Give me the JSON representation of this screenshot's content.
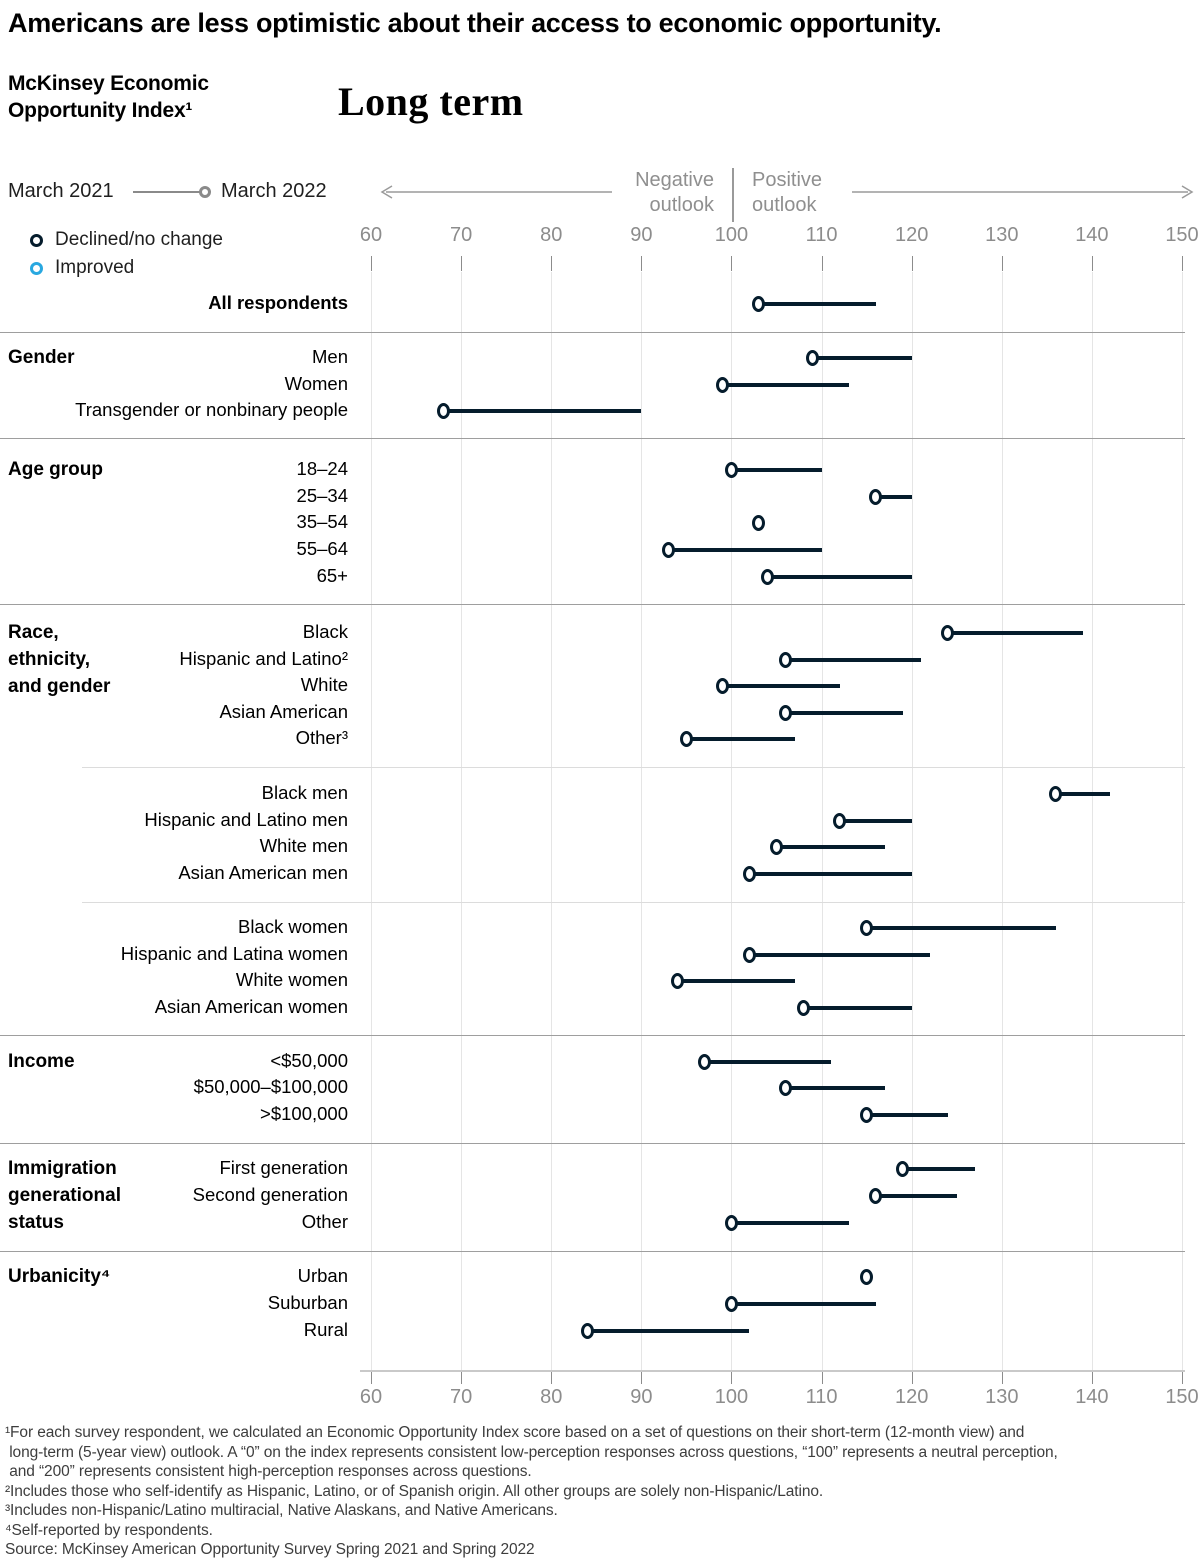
{
  "title": "Americans are less optimistic about their access to economic opportunity.",
  "index_label": "McKinsey Economic Opportunity Index¹",
  "view_label": "Long term",
  "legend": {
    "start_label": "March 2021",
    "end_label": "March 2022",
    "declined_label": "Declined/no change",
    "improved_label": "Improved",
    "declined_color": "#051c2c",
    "improved_color": "#29a8e0"
  },
  "axis": {
    "negative_label": "Negative outlook",
    "positive_label": "Positive outlook",
    "ticks": [
      60,
      70,
      80,
      90,
      100,
      110,
      120,
      130,
      140,
      150
    ]
  },
  "chart_data": {
    "type": "dumbbell",
    "x_range": [
      60,
      150
    ],
    "neutral_value": 100,
    "series_names": [
      "March 2021",
      "March 2022"
    ],
    "sections": [
      {
        "label": "",
        "rows": [
          {
            "label": "All respondents",
            "march_2021": 116,
            "march_2022": 103,
            "bold": true,
            "status": "declined"
          }
        ]
      },
      {
        "label": "Gender",
        "separator": "main",
        "rows": [
          {
            "label": "Men",
            "march_2021": 120,
            "march_2022": 109,
            "status": "declined"
          },
          {
            "label": "Women",
            "march_2021": 113,
            "march_2022": 99,
            "status": "declined"
          },
          {
            "label": "Transgender or nonbinary people",
            "march_2021": 90,
            "march_2022": 68,
            "status": "declined"
          }
        ]
      },
      {
        "label": "Age group",
        "separator": "main",
        "rows": [
          {
            "label": "18–24",
            "march_2021": 110,
            "march_2022": 100,
            "status": "declined"
          },
          {
            "label": "25–34",
            "march_2021": 120,
            "march_2022": 116,
            "status": "declined"
          },
          {
            "label": "35–54",
            "march_2021": 103,
            "march_2022": 103,
            "status": "declined"
          },
          {
            "label": "55–64",
            "march_2021": 110,
            "march_2022": 93,
            "status": "declined"
          },
          {
            "label": "65+",
            "march_2021": 120,
            "march_2022": 104,
            "status": "declined"
          }
        ]
      },
      {
        "label": "Race,\nethnicity,\nand gender",
        "separator": "main",
        "rows": [
          {
            "label": "Black",
            "march_2021": 139,
            "march_2022": 124,
            "status": "declined"
          },
          {
            "label": "Hispanic and Latino²",
            "march_2021": 121,
            "march_2022": 106,
            "status": "declined"
          },
          {
            "label": "White",
            "march_2021": 112,
            "march_2022": 99,
            "status": "declined"
          },
          {
            "label": "Asian American",
            "march_2021": 119,
            "march_2022": 106,
            "status": "declined"
          },
          {
            "label": "Other³",
            "march_2021": 107,
            "march_2022": 95,
            "status": "declined"
          }
        ]
      },
      {
        "label": "",
        "separator": "sub",
        "rows": [
          {
            "label": "Black men",
            "march_2021": 142,
            "march_2022": 136,
            "status": "declined"
          },
          {
            "label": "Hispanic and Latino men",
            "march_2021": 120,
            "march_2022": 112,
            "status": "declined"
          },
          {
            "label": "White men",
            "march_2021": 117,
            "march_2022": 105,
            "status": "declined"
          },
          {
            "label": "Asian American men",
            "march_2021": 120,
            "march_2022": 102,
            "status": "declined"
          }
        ]
      },
      {
        "label": "",
        "separator": "sub",
        "rows": [
          {
            "label": "Black women",
            "march_2021": 136,
            "march_2022": 115,
            "status": "declined"
          },
          {
            "label": "Hispanic and Latina women",
            "march_2021": 122,
            "march_2022": 102,
            "status": "declined"
          },
          {
            "label": "White women",
            "march_2021": 107,
            "march_2022": 94,
            "status": "declined"
          },
          {
            "label": "Asian American women",
            "march_2021": 120,
            "march_2022": 108,
            "status": "declined"
          }
        ]
      },
      {
        "label": "Income",
        "separator": "main",
        "rows": [
          {
            "label": "<$50,000",
            "march_2021": 111,
            "march_2022": 97,
            "status": "declined"
          },
          {
            "label": "$50,000–$100,000",
            "march_2021": 117,
            "march_2022": 106,
            "status": "declined"
          },
          {
            "label": ">$100,000",
            "march_2021": 124,
            "march_2022": 115,
            "status": "declined"
          }
        ]
      },
      {
        "label": "Immigration\ngenerational\nstatus",
        "separator": "main",
        "rows": [
          {
            "label": "First generation",
            "march_2021": 127,
            "march_2022": 119,
            "status": "declined"
          },
          {
            "label": "Second generation",
            "march_2021": 125,
            "march_2022": 116,
            "status": "declined"
          },
          {
            "label": "Other",
            "march_2021": 113,
            "march_2022": 100,
            "status": "declined"
          }
        ]
      },
      {
        "label": "Urbanicity⁴",
        "separator": "main",
        "rows": [
          {
            "label": "Urban",
            "march_2021": 115,
            "march_2022": 115,
            "status": "declined"
          },
          {
            "label": "Suburban",
            "march_2021": 116,
            "march_2022": 100,
            "status": "declined"
          },
          {
            "label": "Rural",
            "march_2021": 102,
            "march_2022": 84,
            "status": "declined"
          }
        ]
      }
    ]
  },
  "footnotes": [
    "¹For each survey respondent, we calculated an Economic Opportunity Index score based on a set of questions on their short-term (12-month view) and",
    " long-term (5-year view) outlook. A “0” on the index represents consistent low-perception responses across questions, “100” represents a neutral perception,",
    " and “200” represents consistent high-perception responses across questions.",
    "²Includes those who self-identify as Hispanic, Latino, or of Spanish origin. All other groups are solely non-Hispanic/Latino.",
    "³Includes non-Hispanic/Latino multiracial, Native Alaskans, and Native Americans.",
    "⁴Self-reported by respondents."
  ],
  "source": "Source: McKinsey American Opportunity Survey Spring 2021 and Spring 2022"
}
